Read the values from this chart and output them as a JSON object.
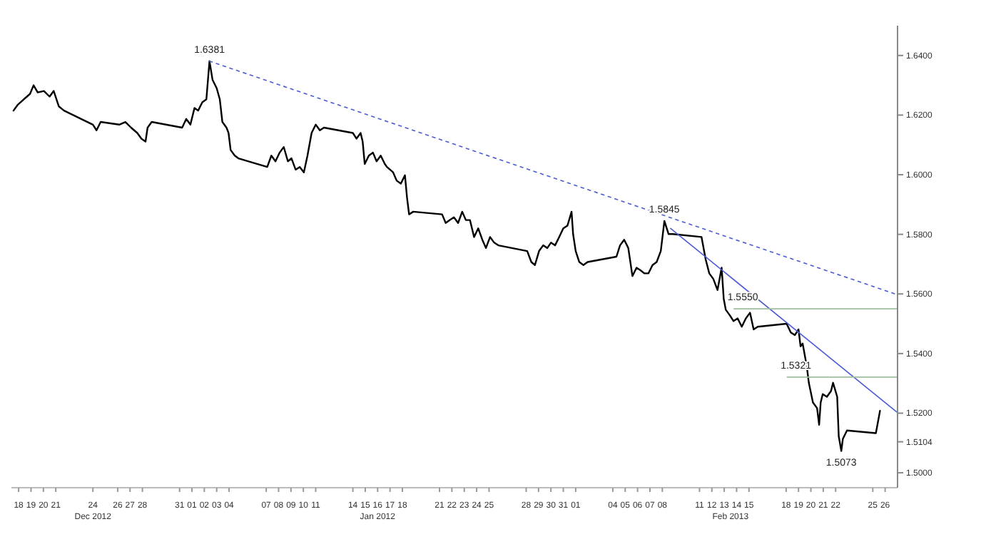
{
  "chart_data": {
    "type": "line",
    "xlim": [
      "2012-12-17T10:00",
      "2013-02-27T00:00"
    ],
    "ylim": [
      1.495,
      1.65
    ],
    "xticks": [
      {
        "value": "2012-12-18",
        "label": "18"
      },
      {
        "value": "2012-12-19",
        "label": "19"
      },
      {
        "value": "2012-12-20",
        "label": "20"
      },
      {
        "value": "2012-12-21",
        "label": "21"
      },
      {
        "value": "2012-12-24",
        "label": "24"
      },
      {
        "value": "2012-12-26",
        "label": "26"
      },
      {
        "value": "2012-12-27",
        "label": "27"
      },
      {
        "value": "2012-12-28",
        "label": "28"
      },
      {
        "value": "2012-12-31",
        "label": "31"
      },
      {
        "value": "2013-01-01",
        "label": "01"
      },
      {
        "value": "2013-01-02",
        "label": "02"
      },
      {
        "value": "2013-01-03",
        "label": "03"
      },
      {
        "value": "2013-01-04",
        "label": "04"
      },
      {
        "value": "2013-01-07",
        "label": "07"
      },
      {
        "value": "2013-01-08",
        "label": "08"
      },
      {
        "value": "2013-01-09",
        "label": "09"
      },
      {
        "value": "2013-01-10",
        "label": "10"
      },
      {
        "value": "2013-01-11",
        "label": "11"
      },
      {
        "value": "2013-01-14",
        "label": "14"
      },
      {
        "value": "2013-01-15",
        "label": "15"
      },
      {
        "value": "2013-01-16",
        "label": "16"
      },
      {
        "value": "2013-01-17",
        "label": "17"
      },
      {
        "value": "2013-01-18",
        "label": "18"
      },
      {
        "value": "2013-01-21",
        "label": "21"
      },
      {
        "value": "2013-01-22",
        "label": "22"
      },
      {
        "value": "2013-01-23",
        "label": "23"
      },
      {
        "value": "2013-01-24",
        "label": "24"
      },
      {
        "value": "2013-01-25",
        "label": "25"
      },
      {
        "value": "2013-01-28",
        "label": "28"
      },
      {
        "value": "2013-01-29",
        "label": "29"
      },
      {
        "value": "2013-01-30",
        "label": "30"
      },
      {
        "value": "2013-01-31",
        "label": "31"
      },
      {
        "value": "2013-02-01",
        "label": "01"
      },
      {
        "value": "2013-02-04",
        "label": "04"
      },
      {
        "value": "2013-02-05",
        "label": "05"
      },
      {
        "value": "2013-02-06",
        "label": "06"
      },
      {
        "value": "2013-02-07",
        "label": "07"
      },
      {
        "value": "2013-02-08",
        "label": "08"
      },
      {
        "value": "2013-02-11",
        "label": "11"
      },
      {
        "value": "2013-02-12",
        "label": "12"
      },
      {
        "value": "2013-02-13",
        "label": "13"
      },
      {
        "value": "2013-02-14",
        "label": "14"
      },
      {
        "value": "2013-02-15",
        "label": "15"
      },
      {
        "value": "2013-02-18",
        "label": "18"
      },
      {
        "value": "2013-02-19",
        "label": "19"
      },
      {
        "value": "2013-02-20",
        "label": "20"
      },
      {
        "value": "2013-02-21",
        "label": "21"
      },
      {
        "value": "2013-02-22",
        "label": "22"
      },
      {
        "value": "2013-02-25",
        "label": "25"
      },
      {
        "value": "2013-02-26",
        "label": "26"
      }
    ],
    "yticks": [
      {
        "value": 1.5,
        "label": "1.5000"
      },
      {
        "value": 1.5104,
        "label": "1.5104"
      },
      {
        "value": 1.52,
        "label": "1.5200"
      },
      {
        "value": 1.54,
        "label": "1.5400"
      },
      {
        "value": 1.56,
        "label": "1.5600"
      },
      {
        "value": 1.58,
        "label": "1.5800"
      },
      {
        "value": 1.6,
        "label": "1.6000"
      },
      {
        "value": 1.62,
        "label": "1.6200"
      },
      {
        "value": 1.64,
        "label": "1.6400"
      }
    ],
    "grid": false,
    "marker": "none",
    "series": [
      {
        "color": "#000000",
        "line_style": "solid",
        "x": [
          "2012-12-17T14:00",
          "2012-12-17T22:00",
          "2012-12-18T10:00",
          "2012-12-18T22:00",
          "2012-12-19T05:00",
          "2012-12-19T13:00",
          "2012-12-20T01:00",
          "2012-12-20T12:00",
          "2012-12-20T20:00",
          "2012-12-21T06:00",
          "2012-12-21T16:00",
          "2012-12-24T00:00",
          "2012-12-24T07:00",
          "2012-12-24T15:00",
          "2012-12-26T03:00",
          "2012-12-26T15:00",
          "2012-12-27T02:00",
          "2012-12-27T14:00",
          "2012-12-27T22:00",
          "2012-12-28T06:00",
          "2012-12-28T10:00",
          "2012-12-28T18:00",
          "2012-12-31T05:00",
          "2012-12-31T13:00",
          "2012-12-31T21:00",
          "2013-01-01T05:00",
          "2013-01-01T12:00",
          "2013-01-01T20:00",
          "2013-01-02T04:00",
          "2013-01-02T10:00",
          "2013-01-02T16:00",
          "2013-01-03T00:00",
          "2013-01-03T06:00",
          "2013-01-03T11:00",
          "2013-01-03T19:00",
          "2013-01-03T23:00",
          "2013-01-04T03:00",
          "2013-01-04T11:00",
          "2013-01-04T18:00",
          "2013-01-07T02:00",
          "2013-01-07T10:00",
          "2013-01-07T18:00",
          "2013-01-08T02:00",
          "2013-01-08T10:00",
          "2013-01-08T18:00",
          "2013-01-09T01:00",
          "2013-01-09T09:00",
          "2013-01-09T17:00",
          "2013-01-10T01:00",
          "2013-01-10T08:00",
          "2013-01-10T16:00",
          "2013-01-11T00:00",
          "2013-01-11T08:00",
          "2013-01-11T16:00",
          "2013-01-14T00:00",
          "2013-01-14T07:00",
          "2013-01-14T15:00",
          "2013-01-14T19:00",
          "2013-01-14T23:00",
          "2013-01-15T07:00",
          "2013-01-15T15:00",
          "2013-01-15T22:00",
          "2013-01-16T06:00",
          "2013-01-16T14:00",
          "2013-01-16T18:00",
          "2013-01-17T06:00",
          "2013-01-17T13:00",
          "2013-01-17T21:00",
          "2013-01-18T05:00",
          "2013-01-18T09:00",
          "2013-01-18T13:00",
          "2013-01-18T21:00",
          "2013-01-21T05:00",
          "2013-01-21T12:00",
          "2013-01-21T20:00",
          "2013-01-22T04:00",
          "2013-01-22T12:00",
          "2013-01-22T20:00",
          "2013-01-23T03:00",
          "2013-01-23T11:00",
          "2013-01-23T19:00",
          "2013-01-24T03:00",
          "2013-01-24T11:00",
          "2013-01-24T18:00",
          "2013-01-25T02:00",
          "2013-01-25T10:00",
          "2013-01-25T18:00",
          "2013-01-28T02:00",
          "2013-01-28T10:00",
          "2013-01-28T17:00",
          "2013-01-29T01:00",
          "2013-01-29T09:00",
          "2013-01-29T17:00",
          "2013-01-30T00:00",
          "2013-01-30T08:00",
          "2013-01-30T16:00",
          "2013-01-31T00:00",
          "2013-01-31T08:00",
          "2013-01-31T16:00",
          "2013-01-31T19:00",
          "2013-02-01T00:00",
          "2013-02-01T07:00",
          "2013-02-01T15:00",
          "2013-02-01T23:00",
          "2013-02-04T07:00",
          "2013-02-04T14:00",
          "2013-02-04T22:00",
          "2013-02-05T06:00",
          "2013-02-05T14:00",
          "2013-02-05T22:00",
          "2013-02-06T06:00",
          "2013-02-06T13:00",
          "2013-02-06T21:00",
          "2013-02-07T05:00",
          "2013-02-07T13:00",
          "2013-02-07T21:00",
          "2013-02-08T04:00",
          "2013-02-08T12:00",
          "2013-02-08T20:00",
          "2013-02-11T04:00",
          "2013-02-11T12:00",
          "2013-02-11T19:00",
          "2013-02-12T03:00",
          "2013-02-12T11:00",
          "2013-02-12T19:00",
          "2013-02-12T23:00",
          "2013-02-13T03:00",
          "2013-02-13T11:00",
          "2013-02-13T18:00",
          "2013-02-14T02:00",
          "2013-02-14T10:00",
          "2013-02-14T18:00",
          "2013-02-15T02:00",
          "2013-02-15T09:00",
          "2013-02-15T17:00",
          "2013-02-18T01:00",
          "2013-02-18T09:00",
          "2013-02-18T17:00",
          "2013-02-19T00:00",
          "2013-02-19T04:00",
          "2013-02-19T08:00",
          "2013-02-19T16:00",
          "2013-02-19T20:00",
          "2013-02-20T04:00",
          "2013-02-20T12:00",
          "2013-02-20T16:00",
          "2013-02-20T19:00",
          "2013-02-20T23:00",
          "2013-02-21T07:00",
          "2013-02-21T15:00",
          "2013-02-21T19:00",
          "2013-02-22T03:00",
          "2013-02-22T06:00",
          "2013-02-22T11:00",
          "2013-02-22T14:00",
          "2013-02-22T22:00",
          "2013-02-25T06:00",
          "2013-02-25T10:00",
          "2013-02-25T14:00"
        ],
        "values": [
          1.6215,
          1.6234,
          1.6253,
          1.6271,
          1.63,
          1.6276,
          1.6281,
          1.6262,
          1.6281,
          1.6229,
          1.6215,
          1.6168,
          1.6149,
          1.6177,
          1.6168,
          1.6177,
          1.6158,
          1.614,
          1.6121,
          1.6111,
          1.6158,
          1.6177,
          1.6158,
          1.6187,
          1.6168,
          1.6224,
          1.6215,
          1.6243,
          1.6253,
          1.6381,
          1.6318,
          1.629,
          1.6253,
          1.6177,
          1.6158,
          1.614,
          1.6083,
          1.6064,
          1.6055,
          1.6026,
          1.6064,
          1.6045,
          1.6074,
          1.6093,
          1.6045,
          1.6055,
          1.6017,
          1.6026,
          1.6008,
          1.6064,
          1.614,
          1.6168,
          1.6149,
          1.6158,
          1.614,
          1.6121,
          1.614,
          1.6111,
          1.6036,
          1.6064,
          1.6074,
          1.6045,
          1.6064,
          1.6036,
          1.6026,
          1.6008,
          1.598,
          1.597,
          1.5998,
          1.5923,
          1.5867,
          1.5876,
          1.5867,
          1.5838,
          1.5848,
          1.5857,
          1.5838,
          1.5876,
          1.5848,
          1.5848,
          1.5791,
          1.582,
          1.5782,
          1.5754,
          1.5791,
          1.5772,
          1.5763,
          1.5744,
          1.5707,
          1.5697,
          1.5744,
          1.5763,
          1.5754,
          1.5772,
          1.5763,
          1.5791,
          1.582,
          1.5829,
          1.5876,
          1.5801,
          1.5744,
          1.5707,
          1.5697,
          1.5707,
          1.5725,
          1.5763,
          1.5782,
          1.5754,
          1.566,
          1.5688,
          1.5679,
          1.5669,
          1.5669,
          1.5697,
          1.5707,
          1.5744,
          1.5845,
          1.5801,
          1.5801,
          1.5791,
          1.5716,
          1.5669,
          1.565,
          1.5613,
          1.5688,
          1.5584,
          1.5547,
          1.5528,
          1.5509,
          1.5518,
          1.549,
          1.5518,
          1.5537,
          1.5481,
          1.549,
          1.55,
          1.5471,
          1.5462,
          1.5481,
          1.5424,
          1.5434,
          1.5358,
          1.5302,
          1.5236,
          1.5217,
          1.5161,
          1.5236,
          1.5264,
          1.5255,
          1.5274,
          1.5302,
          1.5255,
          1.5123,
          1.5073,
          1.5114,
          1.5142,
          1.5133,
          1.517,
          1.5208
        ]
      },
      {
        "type": "line",
        "color": "#4a5bd4",
        "line_style": "dotted",
        "x": [
          "2013-01-02T10:00",
          "2013-02-26T23:00"
        ],
        "values": [
          1.6381,
          1.5598
        ]
      },
      {
        "type": "line",
        "color": "#4a5bd4",
        "line_style": "solid",
        "x": [
          "2013-02-08T16:00",
          "2013-02-26T23:00"
        ],
        "values": [
          1.582,
          1.5203
        ]
      },
      {
        "type": "line",
        "color": "#9fbf9f",
        "line_style": "solid",
        "x": [
          "2013-02-13T19:00",
          "2013-02-26T23:00"
        ],
        "values": [
          1.555,
          1.555
        ]
      },
      {
        "type": "line",
        "color": "#9fbf9f",
        "line_style": "solid",
        "x": [
          "2013-02-18T02:00",
          "2013-02-26T23:00"
        ],
        "values": [
          1.5321,
          1.5321
        ]
      }
    ],
    "annotations": [
      {
        "text": "1.6381",
        "x": "2013-01-02T10:00",
        "y": 1.6381
      },
      {
        "text": "1.5845",
        "x": "2013-02-08T04:00",
        "y": 1.5845
      },
      {
        "text": "1.5550",
        "x": "2013-02-14T12:00",
        "y": 1.555
      },
      {
        "text": "1.5321",
        "x": "2013-02-18T19:00",
        "y": 1.5321
      },
      {
        "text": "1.5073",
        "x": "2013-02-22T11:00",
        "y": 1.5073
      },
      "Dec 2012",
      "Jan 2012",
      "Feb 2013"
    ]
  }
}
